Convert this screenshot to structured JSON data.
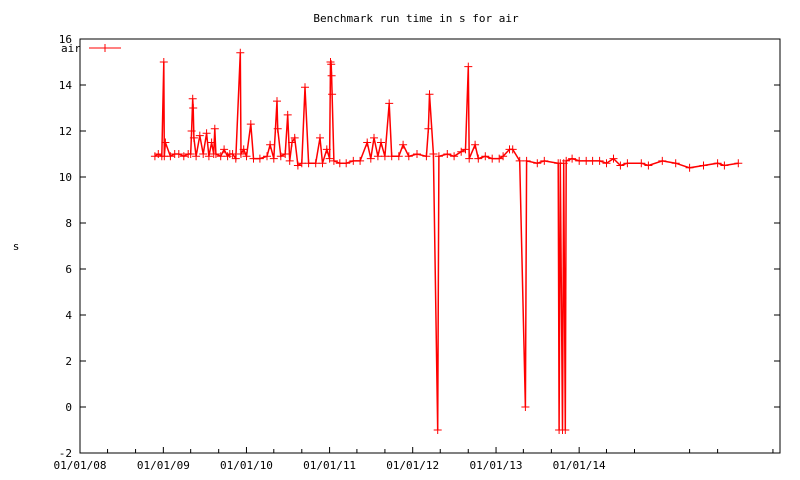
{
  "chart_data": {
    "type": "line",
    "title": "Benchmark run time in s for air",
    "xlabel": "",
    "ylabel": "s",
    "ylim": [
      -2,
      16
    ],
    "yticks": [
      -2,
      0,
      2,
      4,
      6,
      8,
      10,
      12,
      14,
      16
    ],
    "xlim": [
      "2008-01-01",
      "2016-06-01"
    ],
    "xticks": [
      {
        "date": "2008-01-01",
        "label": "01/01/08"
      },
      {
        "date": "2009-01-01",
        "label": "01/01/09"
      },
      {
        "date": "2010-01-01",
        "label": "01/01/10"
      },
      {
        "date": "2011-01-01",
        "label": "01/01/11"
      },
      {
        "date": "2012-01-01",
        "label": "01/01/12"
      },
      {
        "date": "2013-01-01",
        "label": "01/01/13"
      },
      {
        "date": "2014-01-01",
        "label": "01/01/14"
      }
    ],
    "legend_position": "top-left",
    "grid": false,
    "colors": {
      "series": "#ff0000",
      "axis": "#000000"
    },
    "series": [
      {
        "name": "air",
        "marker": "plus",
        "points": [
          [
            "2008-11-25",
            10.9
          ],
          [
            "2008-12-10",
            11.0
          ],
          [
            "2008-12-25",
            10.9
          ],
          [
            "2009-01-03",
            15.0
          ],
          [
            "2009-01-05",
            10.9
          ],
          [
            "2009-01-10",
            11.5
          ],
          [
            "2009-02-01",
            10.9
          ],
          [
            "2009-02-20",
            11.0
          ],
          [
            "2009-03-10",
            11.0
          ],
          [
            "2009-04-01",
            10.9
          ],
          [
            "2009-04-20",
            11.0
          ],
          [
            "2009-05-01",
            11.0
          ],
          [
            "2009-05-05",
            12.0
          ],
          [
            "2009-05-10",
            13.4
          ],
          [
            "2009-05-12",
            13.0
          ],
          [
            "2009-05-15",
            11.7
          ],
          [
            "2009-05-25",
            10.9
          ],
          [
            "2009-06-10",
            11.8
          ],
          [
            "2009-06-25",
            11.0
          ],
          [
            "2009-07-10",
            11.9
          ],
          [
            "2009-07-20",
            10.9
          ],
          [
            "2009-08-01",
            11.5
          ],
          [
            "2009-08-10",
            11.0
          ],
          [
            "2009-08-15",
            12.1
          ],
          [
            "2009-08-20",
            11.0
          ],
          [
            "2009-09-10",
            10.9
          ],
          [
            "2009-09-25",
            11.2
          ],
          [
            "2009-10-10",
            10.9
          ],
          [
            "2009-10-20",
            11.0
          ],
          [
            "2009-11-01",
            11.0
          ],
          [
            "2009-11-15",
            10.8
          ],
          [
            "2009-12-05",
            15.4
          ],
          [
            "2009-12-08",
            11.0
          ],
          [
            "2009-12-20",
            11.2
          ],
          [
            "2010-01-01",
            10.9
          ],
          [
            "2010-01-20",
            12.3
          ],
          [
            "2010-02-01",
            10.8
          ],
          [
            "2010-03-01",
            10.8
          ],
          [
            "2010-04-01",
            10.9
          ],
          [
            "2010-04-15",
            11.4
          ],
          [
            "2010-05-01",
            10.8
          ],
          [
            "2010-05-15",
            13.3
          ],
          [
            "2010-05-18",
            12.1
          ],
          [
            "2010-06-01",
            10.9
          ],
          [
            "2010-06-20",
            11.0
          ],
          [
            "2010-07-01",
            12.7
          ],
          [
            "2010-07-10",
            10.7
          ],
          [
            "2010-07-20",
            11.5
          ],
          [
            "2010-08-01",
            11.7
          ],
          [
            "2010-08-15",
            10.5
          ],
          [
            "2010-09-01",
            10.6
          ],
          [
            "2010-09-15",
            13.9
          ],
          [
            "2010-10-01",
            10.6
          ],
          [
            "2010-11-01",
            10.6
          ],
          [
            "2010-11-20",
            11.7
          ],
          [
            "2010-12-01",
            10.6
          ],
          [
            "2010-12-20",
            11.2
          ],
          [
            "2011-01-01",
            10.8
          ],
          [
            "2011-01-05",
            15.0
          ],
          [
            "2011-01-08",
            14.9
          ],
          [
            "2011-01-10",
            14.4
          ],
          [
            "2011-01-12",
            13.6
          ],
          [
            "2011-01-20",
            10.7
          ],
          [
            "2011-02-15",
            10.6
          ],
          [
            "2011-03-15",
            10.6
          ],
          [
            "2011-04-15",
            10.7
          ],
          [
            "2011-05-15",
            10.7
          ],
          [
            "2011-06-15",
            11.5
          ],
          [
            "2011-07-01",
            10.8
          ],
          [
            "2011-07-15",
            11.7
          ],
          [
            "2011-08-01",
            10.9
          ],
          [
            "2011-08-15",
            11.5
          ],
          [
            "2011-09-01",
            10.9
          ],
          [
            "2011-09-20",
            13.2
          ],
          [
            "2011-10-01",
            10.9
          ],
          [
            "2011-11-01",
            10.9
          ],
          [
            "2011-11-20",
            11.4
          ],
          [
            "2011-12-15",
            10.9
          ],
          [
            "2012-01-20",
            11.0
          ],
          [
            "2012-03-01",
            10.9
          ],
          [
            "2012-03-10",
            12.1
          ],
          [
            "2012-03-15",
            13.6
          ],
          [
            "2012-04-01",
            11.0
          ],
          [
            "2012-04-20",
            -1.0
          ],
          [
            "2012-04-25",
            10.9
          ],
          [
            "2012-06-01",
            11.0
          ],
          [
            "2012-07-01",
            10.9
          ],
          [
            "2012-08-01",
            11.1
          ],
          [
            "2012-08-20",
            11.2
          ],
          [
            "2012-09-01",
            14.8
          ],
          [
            "2012-09-05",
            10.8
          ],
          [
            "2012-10-01",
            11.4
          ],
          [
            "2012-10-15",
            10.8
          ],
          [
            "2012-11-15",
            10.9
          ],
          [
            "2012-12-15",
            10.8
          ],
          [
            "2013-01-15",
            10.8
          ],
          [
            "2013-02-01",
            10.9
          ],
          [
            "2013-03-01",
            11.2
          ],
          [
            "2013-03-15",
            11.2
          ],
          [
            "2013-04-15",
            10.7
          ],
          [
            "2013-05-10",
            0.0
          ],
          [
            "2013-05-15",
            10.7
          ],
          [
            "2013-07-01",
            10.6
          ],
          [
            "2013-08-01",
            10.7
          ],
          [
            "2013-10-01",
            10.6
          ],
          [
            "2013-10-05",
            -1.0
          ],
          [
            "2013-10-10",
            10.6
          ],
          [
            "2013-10-20",
            -1.0
          ],
          [
            "2013-10-25",
            10.6
          ],
          [
            "2013-11-01",
            -1.0
          ],
          [
            "2013-11-05",
            10.7
          ],
          [
            "2013-12-01",
            10.8
          ],
          [
            "2014-01-01",
            10.7
          ],
          [
            "2014-02-01",
            10.7
          ],
          [
            "2014-03-01",
            10.7
          ],
          [
            "2014-04-01",
            10.7
          ],
          [
            "2014-05-01",
            10.6
          ],
          [
            "2014-06-01",
            10.8
          ],
          [
            "2014-07-01",
            10.5
          ],
          [
            "2014-08-01",
            10.6
          ],
          [
            "2014-10-01",
            10.6
          ],
          [
            "2014-11-01",
            10.5
          ],
          [
            "2015-01-01",
            10.7
          ],
          [
            "2015-03-01",
            10.6
          ],
          [
            "2015-05-01",
            10.4
          ],
          [
            "2015-07-01",
            10.5
          ],
          [
            "2015-09-01",
            10.6
          ],
          [
            "2015-10-01",
            10.5
          ],
          [
            "2015-12-01",
            10.6
          ]
        ]
      }
    ]
  }
}
